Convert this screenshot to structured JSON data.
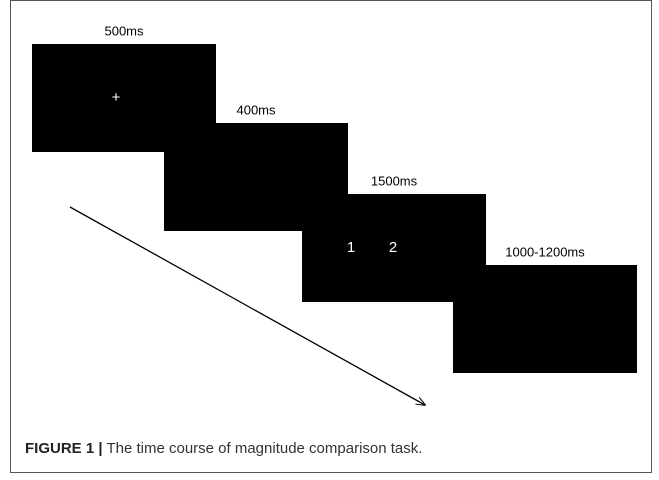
{
  "screens": [
    {
      "duration": "500ms",
      "stimuli": [
        "+"
      ]
    },
    {
      "duration": "400ms",
      "stimuli": []
    },
    {
      "duration": "1500ms",
      "stimuli": [
        "1",
        "2"
      ]
    },
    {
      "duration": "1000-1200ms",
      "stimuli": []
    }
  ],
  "caption": {
    "label": "FIGURE 1 |",
    "text": "The time course of magnitude comparison task."
  }
}
